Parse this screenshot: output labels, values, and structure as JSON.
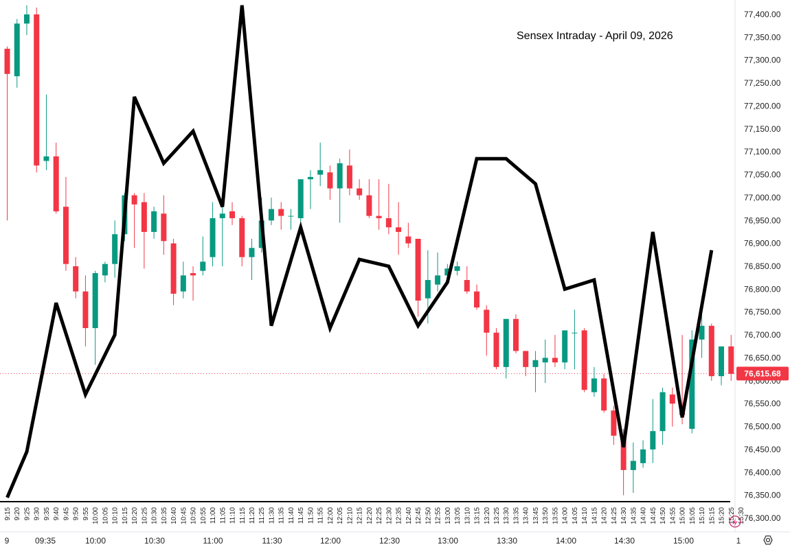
{
  "chart_data": {
    "type": "candlestick",
    "title": "Sensex Intraday - April 09, 2026",
    "ylim": [
      76300,
      77400
    ],
    "y_tick_labels": [
      "77,400.00",
      "77,350.00",
      "77,300.00",
      "77,250.00",
      "77,200.00",
      "77,150.00",
      "77,100.00",
      "77,050.00",
      "77,000.00",
      "76,950.00",
      "76,900.00",
      "76,850.00",
      "76,800.00",
      "76,750.00",
      "76,700.00",
      "76,650.00",
      "76,600.00",
      "76,550.00",
      "76,500.00",
      "76,450.00",
      "76,400.00",
      "76,350.00",
      "76,300.00"
    ],
    "bottom_time_labels": [
      "9",
      "09:35",
      "10:00",
      "10:30",
      "11:00",
      "11:30",
      "12:00",
      "12:30",
      "13:00",
      "13:30",
      "14:00",
      "14:30",
      "15:00",
      "1"
    ],
    "interval_labels": [
      "9:15",
      "9:20",
      "9:25",
      "9:30",
      "9:35",
      "9:40",
      "9:45",
      "9:50",
      "9:55",
      "10:00",
      "10:05",
      "10:10",
      "10:15",
      "10:20",
      "10:25",
      "10:30",
      "10:35",
      "10:40",
      "10:45",
      "10:50",
      "10:55",
      "11:00",
      "11:05",
      "11:10",
      "11:15",
      "11:20",
      "11:25",
      "11:30",
      "11:35",
      "11:40",
      "11:45",
      "11:50",
      "11:55",
      "12:00",
      "12:05",
      "12:10",
      "12:15",
      "12:20",
      "12:25",
      "12:30",
      "12:35",
      "12:40",
      "12:45",
      "12:50",
      "12:55",
      "13:00",
      "13:05",
      "13:10",
      "13:15",
      "13:20",
      "13:25",
      "13:30",
      "13:35",
      "13:40",
      "13:45",
      "13:50",
      "13:55",
      "14:00",
      "14:05",
      "14:10",
      "14:15",
      "14:20",
      "14:25",
      "14:30",
      "14:35",
      "14:40",
      "14:45",
      "14:50",
      "14:55",
      "15:00",
      "15:05",
      "15:10",
      "15:15",
      "15:20",
      "15:25",
      "15:30"
    ],
    "last_price": {
      "label": "76,615.68",
      "value": 76615.68
    },
    "colors": {
      "up": "#089981",
      "down": "#f23645",
      "overlay": "#000000",
      "last_price_bg": "#f23645",
      "last_price_line": "#f23645"
    },
    "candles": [
      {
        "t": "9:15",
        "o": 77325,
        "h": 77330,
        "l": 76950,
        "c": 77270
      },
      {
        "t": "9:20",
        "o": 77265,
        "h": 77390,
        "l": 77240,
        "c": 77380
      },
      {
        "t": "9:25",
        "o": 77380,
        "h": 77420,
        "l": 77355,
        "c": 77400
      },
      {
        "t": "9:30",
        "o": 77400,
        "h": 77415,
        "l": 77055,
        "c": 77070
      },
      {
        "t": "9:35",
        "o": 77080,
        "h": 77225,
        "l": 77060,
        "c": 77090
      },
      {
        "t": "9:40",
        "o": 77090,
        "h": 77120,
        "l": 76965,
        "c": 76970
      },
      {
        "t": "9:45",
        "o": 76980,
        "h": 77045,
        "l": 76840,
        "c": 76855
      },
      {
        "t": "9:50",
        "o": 76850,
        "h": 76870,
        "l": 76780,
        "c": 76795
      },
      {
        "t": "9:55",
        "o": 76795,
        "h": 76830,
        "l": 76675,
        "c": 76715
      },
      {
        "t": "10:00",
        "o": 76715,
        "h": 76840,
        "l": 76635,
        "c": 76835
      },
      {
        "t": "10:05",
        "o": 76830,
        "h": 76860,
        "l": 76815,
        "c": 76855
      },
      {
        "t": "10:10",
        "o": 76855,
        "h": 76950,
        "l": 76825,
        "c": 76920
      },
      {
        "t": "10:15",
        "o": 76920,
        "h": 77010,
        "l": 76905,
        "c": 77005
      },
      {
        "t": "10:20",
        "o": 77005,
        "h": 77010,
        "l": 76890,
        "c": 76985
      },
      {
        "t": "10:25",
        "o": 76990,
        "h": 77010,
        "l": 76845,
        "c": 76925
      },
      {
        "t": "10:30",
        "o": 76925,
        "h": 76980,
        "l": 76910,
        "c": 76970
      },
      {
        "t": "10:35",
        "o": 76965,
        "h": 77005,
        "l": 76875,
        "c": 76905
      },
      {
        "t": "10:40",
        "o": 76900,
        "h": 76910,
        "l": 76765,
        "c": 76790
      },
      {
        "t": "10:45",
        "o": 76795,
        "h": 76860,
        "l": 76780,
        "c": 76830
      },
      {
        "t": "10:50",
        "o": 76835,
        "h": 76850,
        "l": 76775,
        "c": 76830
      },
      {
        "t": "10:55",
        "o": 76840,
        "h": 76915,
        "l": 76830,
        "c": 76860
      },
      {
        "t": "11:00",
        "o": 76870,
        "h": 76990,
        "l": 76850,
        "c": 76955
      },
      {
        "t": "11:05",
        "o": 76955,
        "h": 77010,
        "l": 76850,
        "c": 76965
      },
      {
        "t": "11:10",
        "o": 76970,
        "h": 76990,
        "l": 76940,
        "c": 76955
      },
      {
        "t": "11:15",
        "o": 76955,
        "h": 76960,
        "l": 76850,
        "c": 76870
      },
      {
        "t": "11:20",
        "o": 76870,
        "h": 76910,
        "l": 76820,
        "c": 76890
      },
      {
        "t": "11:25",
        "o": 76890,
        "h": 77000,
        "l": 76880,
        "c": 76950
      },
      {
        "t": "11:30",
        "o": 76950,
        "h": 77000,
        "l": 76940,
        "c": 76975
      },
      {
        "t": "11:35",
        "o": 76975,
        "h": 76990,
        "l": 76930,
        "c": 76960
      },
      {
        "t": "11:40",
        "o": 76960,
        "h": 76975,
        "l": 76930,
        "c": 76960
      },
      {
        "t": "11:45",
        "o": 76955,
        "h": 77040,
        "l": 76945,
        "c": 77040
      },
      {
        "t": "11:50",
        "o": 77040,
        "h": 77060,
        "l": 76975,
        "c": 77045
      },
      {
        "t": "11:55",
        "o": 77050,
        "h": 77120,
        "l": 77025,
        "c": 77060
      },
      {
        "t": "12:00",
        "o": 77055,
        "h": 77070,
        "l": 76995,
        "c": 77020
      },
      {
        "t": "12:05",
        "o": 77020,
        "h": 77085,
        "l": 76945,
        "c": 77075
      },
      {
        "t": "12:10",
        "o": 77070,
        "h": 77105,
        "l": 77005,
        "c": 77020
      },
      {
        "t": "12:15",
        "o": 77020,
        "h": 77040,
        "l": 76995,
        "c": 77005
      },
      {
        "t": "12:20",
        "o": 77005,
        "h": 77040,
        "l": 76955,
        "c": 76960
      },
      {
        "t": "12:25",
        "o": 76960,
        "h": 77040,
        "l": 76930,
        "c": 76955
      },
      {
        "t": "12:30",
        "o": 76955,
        "h": 77030,
        "l": 76920,
        "c": 76935
      },
      {
        "t": "12:35",
        "o": 76935,
        "h": 76990,
        "l": 76875,
        "c": 76925
      },
      {
        "t": "12:40",
        "o": 76915,
        "h": 76945,
        "l": 76890,
        "c": 76900
      },
      {
        "t": "12:45",
        "o": 76910,
        "h": 76910,
        "l": 76740,
        "c": 76775
      },
      {
        "t": "12:50",
        "o": 76780,
        "h": 76885,
        "l": 76725,
        "c": 76820
      },
      {
        "t": "12:55",
        "o": 76810,
        "h": 76880,
        "l": 76795,
        "c": 76830
      },
      {
        "t": "13:00",
        "o": 76830,
        "h": 76855,
        "l": 76820,
        "c": 76845
      },
      {
        "t": "13:05",
        "o": 76840,
        "h": 76860,
        "l": 76830,
        "c": 76850
      },
      {
        "t": "13:10",
        "o": 76820,
        "h": 76850,
        "l": 76790,
        "c": 76795
      },
      {
        "t": "13:15",
        "o": 76795,
        "h": 76810,
        "l": 76755,
        "c": 76760
      },
      {
        "t": "13:20",
        "o": 76755,
        "h": 76765,
        "l": 76655,
        "c": 76705
      },
      {
        "t": "13:25",
        "o": 76705,
        "h": 76715,
        "l": 76625,
        "c": 76630
      },
      {
        "t": "13:30",
        "o": 76630,
        "h": 76735,
        "l": 76605,
        "c": 76735
      },
      {
        "t": "13:35",
        "o": 76735,
        "h": 76745,
        "l": 76660,
        "c": 76665
      },
      {
        "t": "13:40",
        "o": 76665,
        "h": 76665,
        "l": 76610,
        "c": 76630
      },
      {
        "t": "13:45",
        "o": 76630,
        "h": 76665,
        "l": 76575,
        "c": 76645
      },
      {
        "t": "13:50",
        "o": 76640,
        "h": 76690,
        "l": 76595,
        "c": 76650
      },
      {
        "t": "13:55",
        "o": 76650,
        "h": 76700,
        "l": 76630,
        "c": 76640
      },
      {
        "t": "14:00",
        "o": 76640,
        "h": 76710,
        "l": 76625,
        "c": 76710
      },
      {
        "t": "14:05",
        "o": 76705,
        "h": 76755,
        "l": 76625,
        "c": 76705
      },
      {
        "t": "14:10",
        "o": 76710,
        "h": 76715,
        "l": 76575,
        "c": 76580
      },
      {
        "t": "14:15",
        "o": 76575,
        "h": 76630,
        "l": 76565,
        "c": 76605
      },
      {
        "t": "14:20",
        "o": 76605,
        "h": 76615,
        "l": 76530,
        "c": 76535
      },
      {
        "t": "14:25",
        "o": 76535,
        "h": 76545,
        "l": 76460,
        "c": 76480
      },
      {
        "t": "14:30",
        "o": 76480,
        "h": 76495,
        "l": 76350,
        "c": 76405
      },
      {
        "t": "14:35",
        "o": 76405,
        "h": 76465,
        "l": 76355,
        "c": 76425
      },
      {
        "t": "14:40",
        "o": 76420,
        "h": 76470,
        "l": 76410,
        "c": 76450
      },
      {
        "t": "14:45",
        "o": 76450,
        "h": 76560,
        "l": 76420,
        "c": 76490
      },
      {
        "t": "14:50",
        "o": 76490,
        "h": 76585,
        "l": 76460,
        "c": 76575
      },
      {
        "t": "14:55",
        "o": 76570,
        "h": 76585,
        "l": 76500,
        "c": 76550
      },
      {
        "t": "15:00",
        "o": 76545,
        "h": 76700,
        "l": 76505,
        "c": 76525
      },
      {
        "t": "15:05",
        "o": 76495,
        "h": 76710,
        "l": 76485,
        "c": 76690
      },
      {
        "t": "15:10",
        "o": 76690,
        "h": 76750,
        "l": 76650,
        "c": 76720
      },
      {
        "t": "15:15",
        "o": 76720,
        "h": 76725,
        "l": 76600,
        "c": 76610
      },
      {
        "t": "15:20",
        "o": 76610,
        "h": 76670,
        "l": 76590,
        "c": 76675
      },
      {
        "t": "15:25",
        "o": 76675,
        "h": 76700,
        "l": 76600,
        "c": 76615
      }
    ],
    "overlay_line": [
      {
        "t": "9:15",
        "v": 76345
      },
      {
        "t": "9:25",
        "v": 76445
      },
      {
        "t": "9:40",
        "v": 76770
      },
      {
        "t": "9:55",
        "v": 76570
      },
      {
        "t": "10:10",
        "v": 76700
      },
      {
        "t": "10:20",
        "v": 77220
      },
      {
        "t": "10:35",
        "v": 77075
      },
      {
        "t": "10:50",
        "v": 77145
      },
      {
        "t": "11:05",
        "v": 76980
      },
      {
        "t": "11:15",
        "v": 77420
      },
      {
        "t": "11:30",
        "v": 76720
      },
      {
        "t": "11:45",
        "v": 76935
      },
      {
        "t": "12:00",
        "v": 76715
      },
      {
        "t": "12:15",
        "v": 76865
      },
      {
        "t": "12:30",
        "v": 76850
      },
      {
        "t": "12:45",
        "v": 76720
      },
      {
        "t": "13:00",
        "v": 76815
      },
      {
        "t": "13:15",
        "v": 77085
      },
      {
        "t": "13:30",
        "v": 77085
      },
      {
        "t": "13:45",
        "v": 77030
      },
      {
        "t": "14:00",
        "v": 76800
      },
      {
        "t": "14:15",
        "v": 76820
      },
      {
        "t": "14:30",
        "v": 76455
      },
      {
        "t": "14:45",
        "v": 76925
      },
      {
        "t": "15:00",
        "v": 76520
      },
      {
        "t": "15:15",
        "v": 76885
      }
    ]
  }
}
